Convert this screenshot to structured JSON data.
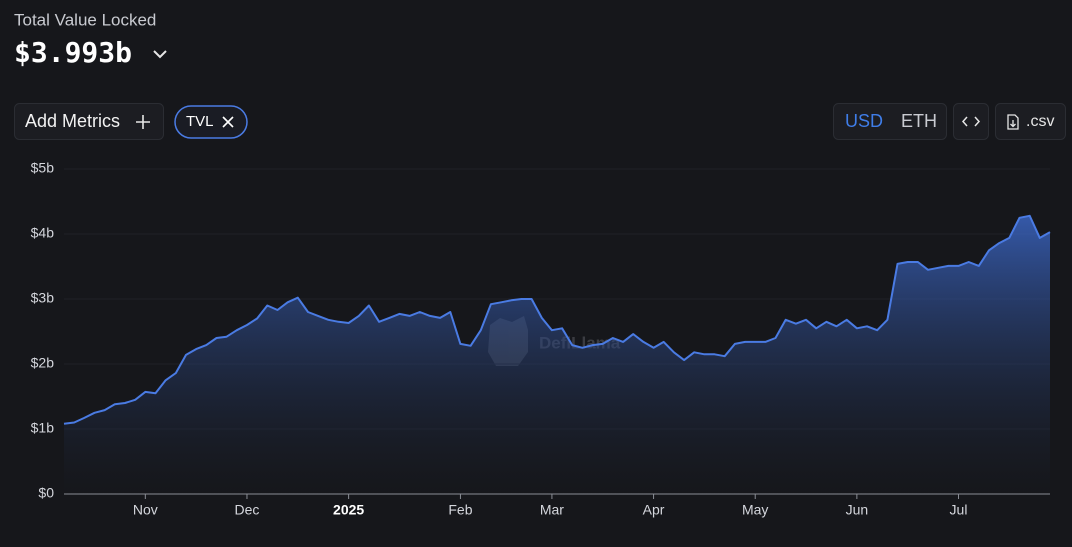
{
  "header": {
    "title": "Total Value Locked",
    "value": "$3.993b"
  },
  "controls": {
    "add_metrics": "Add Metrics",
    "metric": "TVL",
    "currencies": [
      "USD",
      "ETH"
    ],
    "active_currency": 0,
    "csv": ".csv"
  },
  "watermark": "DefiLlama",
  "chart_data": {
    "type": "area",
    "color": "#4a7be3",
    "categories": [
      null,
      null,
      null,
      null,
      null,
      null,
      null,
      null,
      "Nov",
      null,
      null,
      null,
      null,
      null,
      null,
      null,
      null,
      null,
      "Dec",
      null,
      null,
      null,
      null,
      null,
      null,
      null,
      null,
      null,
      "2025",
      null,
      null,
      null,
      null,
      null,
      null,
      null,
      null,
      null,
      null,
      "Feb",
      null,
      null,
      null,
      null,
      null,
      null,
      null,
      null,
      "Mar",
      null,
      null,
      null,
      null,
      null,
      null,
      null,
      null,
      null,
      "Apr",
      null,
      null,
      null,
      null,
      null,
      null,
      null,
      null,
      null,
      "May",
      null,
      null,
      null,
      null,
      null,
      null,
      null,
      null,
      null,
      "Jun",
      null,
      null,
      null,
      null,
      null,
      null,
      null,
      null,
      null,
      "Jul",
      null,
      null,
      null,
      null,
      null,
      null,
      null,
      null,
      null
    ],
    "values": [
      1.08,
      1.1,
      1.17,
      1.25,
      1.29,
      1.38,
      1.4,
      1.45,
      1.57,
      1.55,
      1.75,
      1.86,
      2.14,
      2.23,
      2.29,
      2.4,
      2.42,
      2.52,
      2.6,
      2.7,
      2.9,
      2.83,
      2.95,
      3.02,
      2.8,
      2.74,
      2.68,
      2.65,
      2.63,
      2.74,
      2.9,
      2.65,
      2.71,
      2.77,
      2.74,
      2.8,
      2.74,
      2.71,
      2.8,
      2.31,
      2.28,
      2.52,
      2.92,
      2.95,
      2.98,
      3.0,
      3.0,
      2.71,
      2.52,
      2.55,
      2.29,
      2.25,
      2.29,
      2.31,
      2.4,
      2.34,
      2.46,
      2.34,
      2.25,
      2.34,
      2.18,
      2.06,
      2.18,
      2.15,
      2.15,
      2.12,
      2.31,
      2.34,
      2.34,
      2.34,
      2.4,
      2.68,
      2.62,
      2.68,
      2.55,
      2.65,
      2.58,
      2.68,
      2.55,
      2.58,
      2.52,
      2.68,
      3.54,
      3.57,
      3.57,
      3.45,
      3.48,
      3.51,
      3.51,
      3.57,
      3.51,
      3.75,
      3.86,
      3.94,
      4.25,
      4.28,
      3.94,
      4.03
    ],
    "ylim": [
      0,
      5
    ],
    "yticks": [
      {
        "value": 0,
        "label": "$0"
      },
      {
        "value": 1,
        "label": "$1b"
      },
      {
        "value": 2,
        "label": "$2b"
      },
      {
        "value": 3,
        "label": "$3b"
      },
      {
        "value": 4,
        "label": "$4b"
      },
      {
        "value": 5,
        "label": "$5b"
      }
    ],
    "grid": true
  }
}
